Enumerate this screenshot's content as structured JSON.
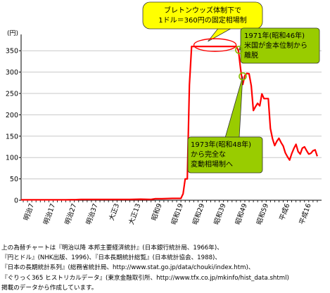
{
  "chart_data": {
    "type": "line",
    "unit_label": "(円)",
    "ylim": [
      0,
      375
    ],
    "yticks": [
      0,
      50,
      100,
      150,
      200,
      250,
      300,
      350
    ],
    "xlim": [
      1869,
      2010
    ],
    "grid": "horizontal",
    "line_color": "#ff0000",
    "x_tick_labels": [
      {
        "label": "明治7",
        "year": 1874
      },
      {
        "label": "明治17",
        "year": 1884
      },
      {
        "label": "明治27",
        "year": 1894
      },
      {
        "label": "明治37",
        "year": 1904
      },
      {
        "label": "大正3",
        "year": 1914
      },
      {
        "label": "大正13",
        "year": 1924
      },
      {
        "label": "昭和9",
        "year": 1934
      },
      {
        "label": "昭和19",
        "year": 1944
      },
      {
        "label": "昭和29",
        "year": 1954
      },
      {
        "label": "昭和39",
        "year": 1964
      },
      {
        "label": "昭和49",
        "year": 1974
      },
      {
        "label": "昭和59",
        "year": 1984
      },
      {
        "label": "平成6",
        "year": 1994
      },
      {
        "label": "平成16",
        "year": 2004
      }
    ],
    "series": [
      {
        "x": [
          1869,
          1872,
          1875,
          1880,
          1885,
          1890,
          1895,
          1897,
          1900,
          1905,
          1910,
          1915,
          1920,
          1925,
          1930,
          1932,
          1935,
          1940,
          1944,
          1945,
          1946,
          1947,
          1948,
          1949,
          1950,
          1955,
          1960,
          1965,
          1970,
          1971,
          1972,
          1973,
          1974,
          1975,
          1976,
          1977,
          1978,
          1979,
          1980,
          1981,
          1982,
          1983,
          1984,
          1985,
          1986,
          1987,
          1988,
          1989,
          1990,
          1991,
          1992,
          1993,
          1994,
          1995,
          1996,
          1997,
          1998,
          1999,
          2000,
          2001,
          2002,
          2003,
          2004,
          2005,
          2006,
          2007,
          2008
        ],
        "y": [
          1,
          1,
          1,
          1,
          1,
          1,
          1.5,
          2,
          2,
          2,
          2,
          2,
          2,
          2.5,
          2,
          3.5,
          3.5,
          4.3,
          4.3,
          15,
          50,
          50,
          270,
          360,
          360,
          360,
          360,
          360,
          360,
          350,
          308,
          271,
          292,
          297,
          296,
          268,
          210,
          219,
          227,
          221,
          249,
          238,
          238,
          238,
          168,
          144,
          128,
          138,
          145,
          135,
          127,
          111,
          102,
          94,
          109,
          121,
          131,
          114,
          108,
          122,
          125,
          116,
          108,
          110,
          116,
          118,
          103
        ]
      }
    ],
    "annotations": [
      {
        "lines": [
          "ブレトンウッズ体制下で",
          "1ドル＝360円の固定相場制"
        ],
        "fill": "#ffff00"
      },
      {
        "lines": [
          "1971年(昭和46年)",
          "米国が金本位制から",
          "離脱"
        ],
        "fill": "#99cc00"
      },
      {
        "lines": [
          "1973年(昭和48年)",
          "から完全な",
          "変動相場制へ"
        ],
        "fill": "#99cc00"
      }
    ]
  },
  "caption": [
    "上の為替チャートは『明治以降 本邦主要経済統計』(日本銀行統計局、1966年)、",
    "『円とドル』(NHK出版、1996)、『日本長期統計総覧』(日本統計協会、1988)、",
    "『日本の長期統計系列』(総務省統計局、http://www.stat.go.jp/data/chouki/index.htm)、",
    "『ぐりっく365 ヒストリカルデータ』(東京金融取引所、http://www.tfx.co.jp/mkinfo/hist_data.shtml)",
    "掲載のデータから作成しています。"
  ]
}
